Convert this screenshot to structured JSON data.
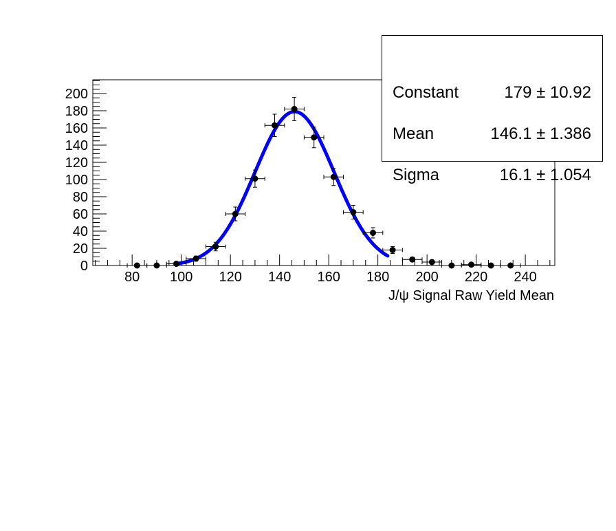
{
  "chart_data": {
    "type": "scatter",
    "xlabel": "J/ψ Signal Raw Yield Mean",
    "ylabel": "",
    "xlim": [
      64,
      252
    ],
    "ylim": [
      0,
      216
    ],
    "x_ticks": [
      80,
      100,
      120,
      140,
      160,
      180,
      200,
      220,
      240
    ],
    "y_ticks": [
      0,
      20,
      40,
      60,
      80,
      100,
      120,
      140,
      160,
      180,
      200
    ],
    "bin_width": 8,
    "grid": false,
    "points": [
      {
        "x": 82,
        "y": 0,
        "yerr": 0
      },
      {
        "x": 90,
        "y": 0,
        "yerr": 0
      },
      {
        "x": 98,
        "y": 2,
        "yerr": 1.5
      },
      {
        "x": 106,
        "y": 8,
        "yerr": 3
      },
      {
        "x": 114,
        "y": 22,
        "yerr": 5
      },
      {
        "x": 122,
        "y": 60,
        "yerr": 8
      },
      {
        "x": 130,
        "y": 101,
        "yerr": 10
      },
      {
        "x": 138,
        "y": 163,
        "yerr": 13
      },
      {
        "x": 146,
        "y": 182,
        "yerr": 13.5
      },
      {
        "x": 154,
        "y": 149,
        "yerr": 12
      },
      {
        "x": 162,
        "y": 103,
        "yerr": 10
      },
      {
        "x": 170,
        "y": 62,
        "yerr": 8
      },
      {
        "x": 178,
        "y": 38,
        "yerr": 6
      },
      {
        "x": 186,
        "y": 18,
        "yerr": 4
      },
      {
        "x": 194,
        "y": 7,
        "yerr": 2.6
      },
      {
        "x": 202,
        "y": 4,
        "yerr": 2
      },
      {
        "x": 210,
        "y": 0,
        "yerr": 0
      },
      {
        "x": 218,
        "y": 1,
        "yerr": 1
      },
      {
        "x": 226,
        "y": 0,
        "yerr": 0
      },
      {
        "x": 234,
        "y": 0,
        "yerr": 0
      }
    ],
    "fit": {
      "function": "gaus",
      "constant": 179,
      "mean": 146.1,
      "sigma": 16.1,
      "x_range": [
        98,
        184
      ],
      "color": "#0000ff"
    },
    "stats": [
      {
        "name": "Constant",
        "value": "179 ± 10.92"
      },
      {
        "name": "Mean",
        "value": "146.1 ± 1.386"
      },
      {
        "name": "Sigma",
        "value": "16.1 ± 1.054"
      }
    ]
  }
}
